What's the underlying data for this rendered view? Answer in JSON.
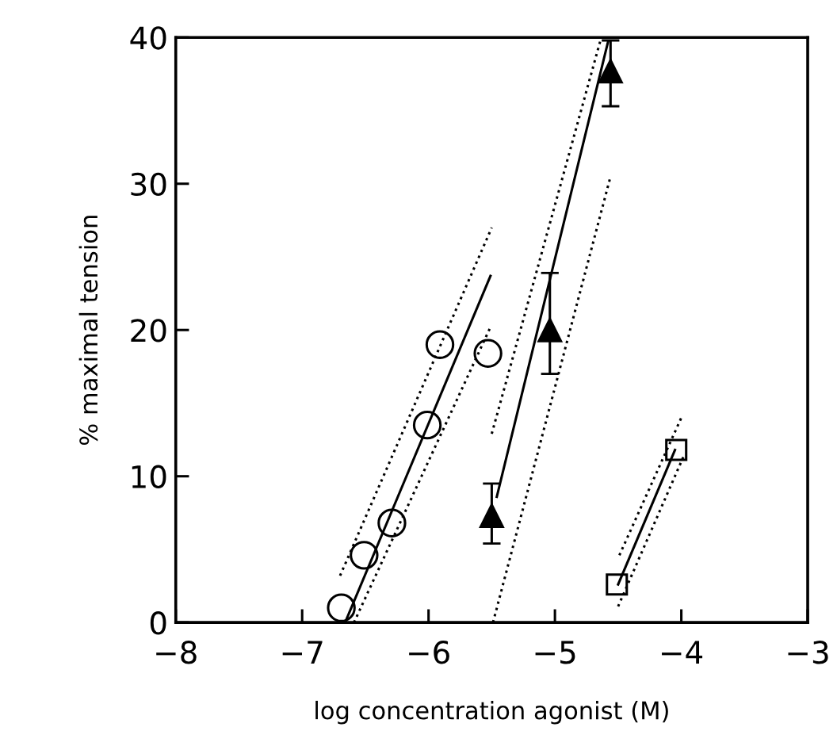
{
  "chart_data": {
    "type": "scatter",
    "xlabel": "log concentration agonist (M)",
    "ylabel": "% maximal tension",
    "xlim": [
      -8,
      -3
    ],
    "ylim": [
      0,
      40
    ],
    "xticks": [
      {
        "value": -8,
        "label": "−8"
      },
      {
        "value": -7,
        "label": "−7"
      },
      {
        "value": -6,
        "label": "−6"
      },
      {
        "value": -5,
        "label": "−5"
      },
      {
        "value": -4,
        "label": "−4"
      },
      {
        "value": -3,
        "label": "−3"
      }
    ],
    "yticks": [
      0,
      10,
      20,
      30,
      40
    ],
    "grid": false,
    "legend": false,
    "series": [
      {
        "marker": "circle",
        "color": "#000000",
        "x": [
          -6.69,
          -6.51,
          -6.29,
          -6.01,
          -5.91,
          -5.53
        ],
        "values": [
          1.0,
          4.6,
          6.8,
          13.5,
          19.0,
          18.4
        ]
      },
      {
        "marker": "triangle",
        "color": "#000000",
        "x": [
          -5.5,
          -5.04,
          -4.56
        ],
        "values": [
          7.3,
          20.0,
          37.7
        ],
        "errors": [
          [
            5.4,
            9.5
          ],
          [
            17.0,
            23.9
          ],
          [
            35.3,
            39.8
          ]
        ]
      },
      {
        "marker": "square",
        "color": "#000000",
        "x": [
          -4.51,
          -4.04
        ],
        "values": [
          2.6,
          11.8
        ]
      },
      {
        "type": "line",
        "line_style": "solid",
        "color": "#000000",
        "x": [
          -6.66,
          -5.51
        ],
        "values": [
          0,
          23.7
        ]
      },
      {
        "type": "line",
        "line_style": "dotted",
        "color": "#000000",
        "x": [
          -6.7,
          -5.5
        ],
        "values": [
          3.2,
          27
        ]
      },
      {
        "type": "line",
        "line_style": "dotted",
        "color": "#000000",
        "x": [
          -6.59,
          -5.51
        ],
        "values": [
          0,
          20.2
        ]
      },
      {
        "type": "line",
        "line_style": "solid",
        "color": "#000000",
        "x": [
          -5.46,
          -4.58
        ],
        "values": [
          8.6,
          39.7
        ]
      },
      {
        "type": "line",
        "line_style": "dotted",
        "color": "#000000",
        "x": [
          -5.5,
          -4.64
        ],
        "values": [
          12.9,
          39.8
        ]
      },
      {
        "type": "line",
        "line_style": "dotted",
        "color": "#000000",
        "x": [
          -5.49,
          -4.56
        ],
        "values": [
          0,
          30.5
        ]
      },
      {
        "type": "line",
        "line_style": "solid",
        "color": "#000000",
        "x": [
          -4.5,
          -4.05
        ],
        "values": [
          2.6,
          11.8
        ]
      },
      {
        "type": "line",
        "line_style": "dotted",
        "color": "#000000",
        "x": [
          -4.49,
          -4.0
        ],
        "values": [
          4.6,
          14.0
        ]
      },
      {
        "type": "line",
        "line_style": "dotted",
        "color": "#000000",
        "x": [
          -4.5,
          -3.98
        ],
        "values": [
          1.1,
          11.4
        ]
      }
    ]
  }
}
